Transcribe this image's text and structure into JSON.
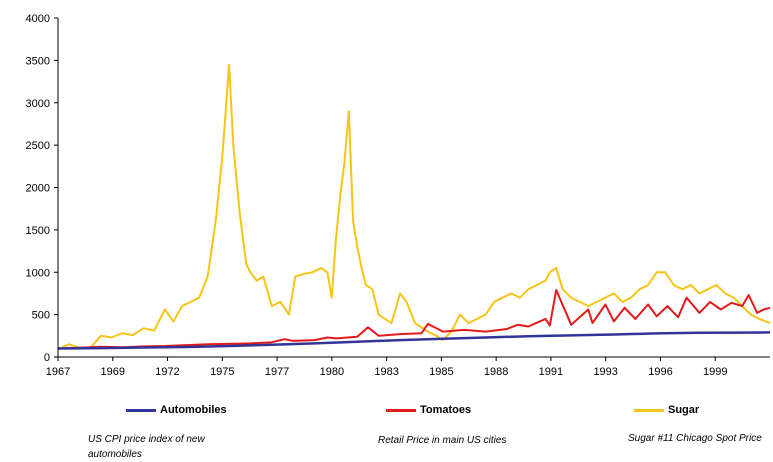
{
  "chart_data": {
    "type": "line",
    "title": "",
    "xlabel": "",
    "ylabel": "",
    "ylim": [
      0,
      4000
    ],
    "yticks": [
      0,
      500,
      1000,
      1500,
      2000,
      2500,
      3000,
      3500,
      4000
    ],
    "xlim": [
      1967,
      2000.3
    ],
    "xtick_labels": [
      "1967",
      "1969",
      "1972",
      "1975",
      "1977",
      "1980",
      "1983",
      "1985",
      "1988",
      "1991",
      "1993",
      "1996",
      "1999"
    ],
    "grid": false,
    "legend_position": "bottom",
    "series": [
      {
        "name": "Automobiles",
        "color": "#333399",
        "note": "US CPI price index of new automobiles",
        "x": [
          1967,
          1969,
          1971,
          1973,
          1975,
          1977,
          1979,
          1981,
          1983,
          1985,
          1987,
          1989,
          1991,
          1993,
          1995,
          1997,
          1999,
          2000.3
        ],
        "y": [
          100,
          105,
          112,
          118,
          130,
          145,
          160,
          180,
          200,
          215,
          230,
          245,
          255,
          265,
          278,
          285,
          288,
          290
        ]
      },
      {
        "name": "Tomatoes",
        "color": "#e31a1c",
        "note": "Retail Price in main US cities",
        "x": [
          1967,
          1968,
          1969,
          1970,
          1971,
          1972,
          1973,
          1974,
          1975,
          1976,
          1977,
          1977.6,
          1978,
          1979,
          1979.6,
          1980,
          1981,
          1981.5,
          1982,
          1983,
          1984,
          1984.3,
          1985,
          1986,
          1987,
          1988,
          1988.5,
          1989,
          1989.8,
          1990,
          1990.3,
          1991,
          1991.8,
          1992,
          1992.6,
          1993,
          1993.5,
          1994,
          1994.6,
          1995,
          1995.5,
          1996,
          1996.4,
          1997,
          1997.5,
          1998,
          1998.5,
          1999,
          1999.3,
          1999.7,
          2000,
          2000.3
        ],
        "y": [
          100,
          110,
          120,
          115,
          125,
          130,
          140,
          150,
          155,
          160,
          175,
          210,
          190,
          200,
          230,
          220,
          240,
          350,
          250,
          270,
          280,
          390,
          300,
          320,
          300,
          330,
          380,
          360,
          450,
          370,
          790,
          380,
          560,
          400,
          620,
          420,
          580,
          450,
          620,
          480,
          600,
          470,
          700,
          520,
          650,
          560,
          640,
          600,
          730,
          520,
          560,
          580
        ]
      },
      {
        "name": "Sugar",
        "color": "#f5c518",
        "note": "Sugar #11 Chicago Spot Price",
        "x": [
          1967,
          1967.5,
          1968,
          1968.5,
          1969,
          1969.5,
          1970,
          1970.5,
          1971,
          1971.5,
          1972,
          1972.4,
          1972.8,
          1973.2,
          1973.6,
          1974,
          1974.4,
          1974.7,
          1975,
          1975.2,
          1975.5,
          1975.8,
          1976,
          1976.3,
          1976.6,
          1977,
          1977.4,
          1977.8,
          1978.1,
          1978.5,
          1978.9,
          1979.3,
          1979.6,
          1979.8,
          1980,
          1980.2,
          1980.4,
          1980.6,
          1980.8,
          1981,
          1981.2,
          1981.4,
          1981.7,
          1982,
          1982.3,
          1982.6,
          1983,
          1983.3,
          1983.7,
          1984,
          1984.3,
          1984.7,
          1985,
          1985.4,
          1985.8,
          1986.2,
          1986.6,
          1987,
          1987.4,
          1987.8,
          1988.2,
          1988.6,
          1989,
          1989.4,
          1989.8,
          1990,
          1990.3,
          1990.6,
          1991,
          1991.4,
          1991.8,
          1992.2,
          1992.6,
          1993,
          1993.4,
          1993.8,
          1994.2,
          1994.6,
          1995,
          1995.4,
          1995.8,
          1996.2,
          1996.6,
          1997,
          1997.4,
          1997.8,
          1998.2,
          1998.6,
          1999,
          1999.4,
          1999.8,
          2000.3
        ],
        "y": [
          90,
          150,
          110,
          100,
          250,
          230,
          280,
          260,
          340,
          310,
          560,
          420,
          600,
          650,
          700,
          950,
          1650,
          2400,
          3450,
          2500,
          1700,
          1100,
          1000,
          900,
          950,
          600,
          650,
          500,
          950,
          980,
          1000,
          1050,
          1000,
          700,
          1400,
          1900,
          2300,
          2900,
          1600,
          1300,
          1050,
          850,
          800,
          500,
          450,
          400,
          750,
          650,
          400,
          350,
          300,
          250,
          200,
          300,
          500,
          400,
          450,
          500,
          650,
          700,
          750,
          700,
          800,
          850,
          900,
          1000,
          1050,
          800,
          700,
          650,
          600,
          650,
          700,
          750,
          650,
          700,
          800,
          850,
          1000,
          1000,
          850,
          800,
          850,
          750,
          800,
          850,
          750,
          700,
          600,
          500,
          450,
          400
        ]
      }
    ]
  }
}
